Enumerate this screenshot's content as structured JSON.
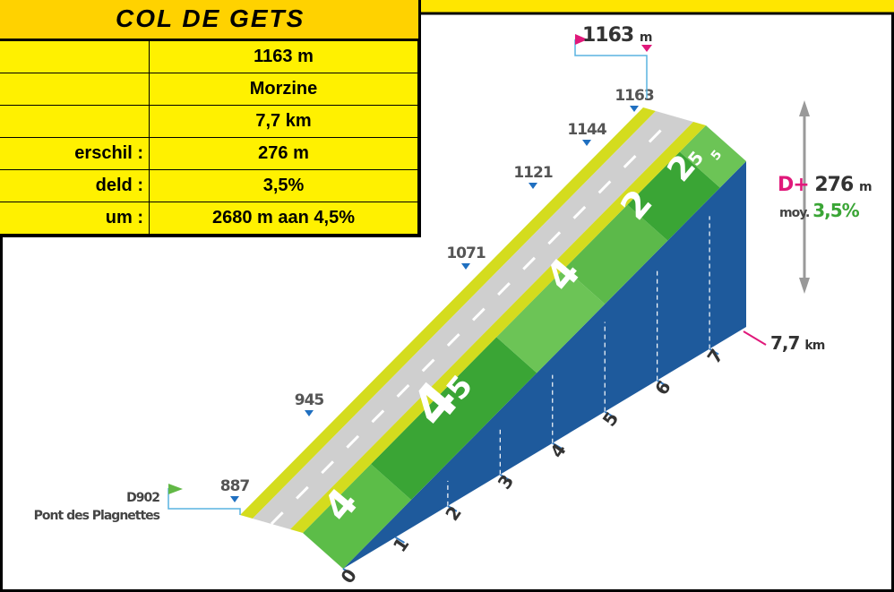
{
  "title": "COL DE GETS",
  "table": {
    "rows": [
      {
        "value": "1163 m"
      },
      {
        "value": "Morzine"
      },
      {
        "value": "7,7 km"
      },
      {
        "label": "erschil :",
        "value": "276 m"
      },
      {
        "label": "deld :",
        "value": "3,5%"
      },
      {
        "label": "um :",
        "value": "2680 m aan 4,5%"
      }
    ]
  },
  "profile": {
    "summit_flag": {
      "value": "1163",
      "unit": "m"
    },
    "start": {
      "road": "D902",
      "name": "Pont des Plagnettes"
    },
    "altitudes": [
      "887",
      "945",
      "1071",
      "1121",
      "1144",
      "1163"
    ],
    "km_markers": [
      "0",
      "1",
      "2",
      "3",
      "4",
      "5",
      "6",
      "7"
    ],
    "gradients": [
      {
        "big": "4"
      },
      {
        "big": "4",
        "small": "5"
      },
      {
        "big": "4"
      },
      {
        "big": "2"
      },
      {
        "big": "2",
        "small": "5"
      },
      {
        "small": "5"
      }
    ],
    "distance": {
      "value": "7,7",
      "unit": "km"
    },
    "ascent": {
      "label": "D+",
      "value": "276",
      "unit": "m"
    },
    "average": {
      "label": "moy.",
      "value": "3,5%"
    }
  }
}
